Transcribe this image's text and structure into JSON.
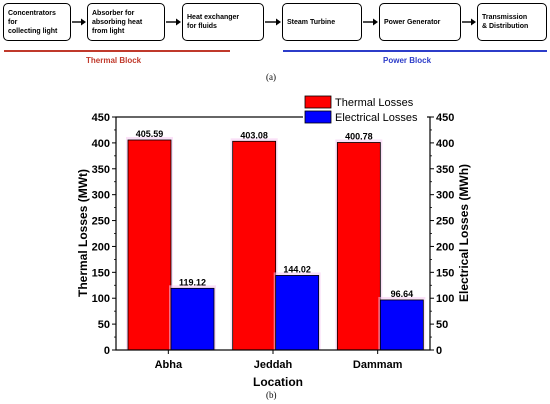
{
  "flow": {
    "boxes": [
      {
        "label": "Concentrators for\ncollecting light"
      },
      {
        "label": "Absorber for\nabsorbing heat\nfrom light"
      },
      {
        "label": "Heat exchanger\nfor fluids"
      },
      {
        "label": "Steam Turbine"
      },
      {
        "label": "Power Generator"
      },
      {
        "label": "Transmission\n& Distribution"
      }
    ],
    "thermal_block": "Thermal Block",
    "power_block": "Power Block",
    "thermal_color": "#c0392b",
    "power_color": "#2c3cc9"
  },
  "labels": {
    "a": "(a)",
    "b": "(b)"
  },
  "chart_data": {
    "type": "bar",
    "categories": [
      "Abha",
      "Jeddah",
      "Dammam"
    ],
    "series": [
      {
        "name": "Thermal Losses",
        "values": [
          405.59,
          403.08,
          400.78
        ],
        "color": "#ff0000",
        "labels": [
          "405.59",
          "403.08",
          "400.78"
        ]
      },
      {
        "name": "Electrical Losses",
        "values": [
          119.12,
          144.02,
          96.64
        ],
        "color": "#0000ff",
        "labels": [
          "119.12",
          "144.02",
          "96.64"
        ]
      }
    ],
    "xlabel": "Location",
    "ylabel_left": "Thermal Losses (MWt)",
    "ylabel_right": "Electrical Losses (MWh)",
    "ylim": [
      0,
      450
    ],
    "yticks": [
      "0",
      "50",
      "100",
      "150",
      "200",
      "250",
      "300",
      "350",
      "400",
      "450"
    ],
    "legend_position": "top-right"
  }
}
